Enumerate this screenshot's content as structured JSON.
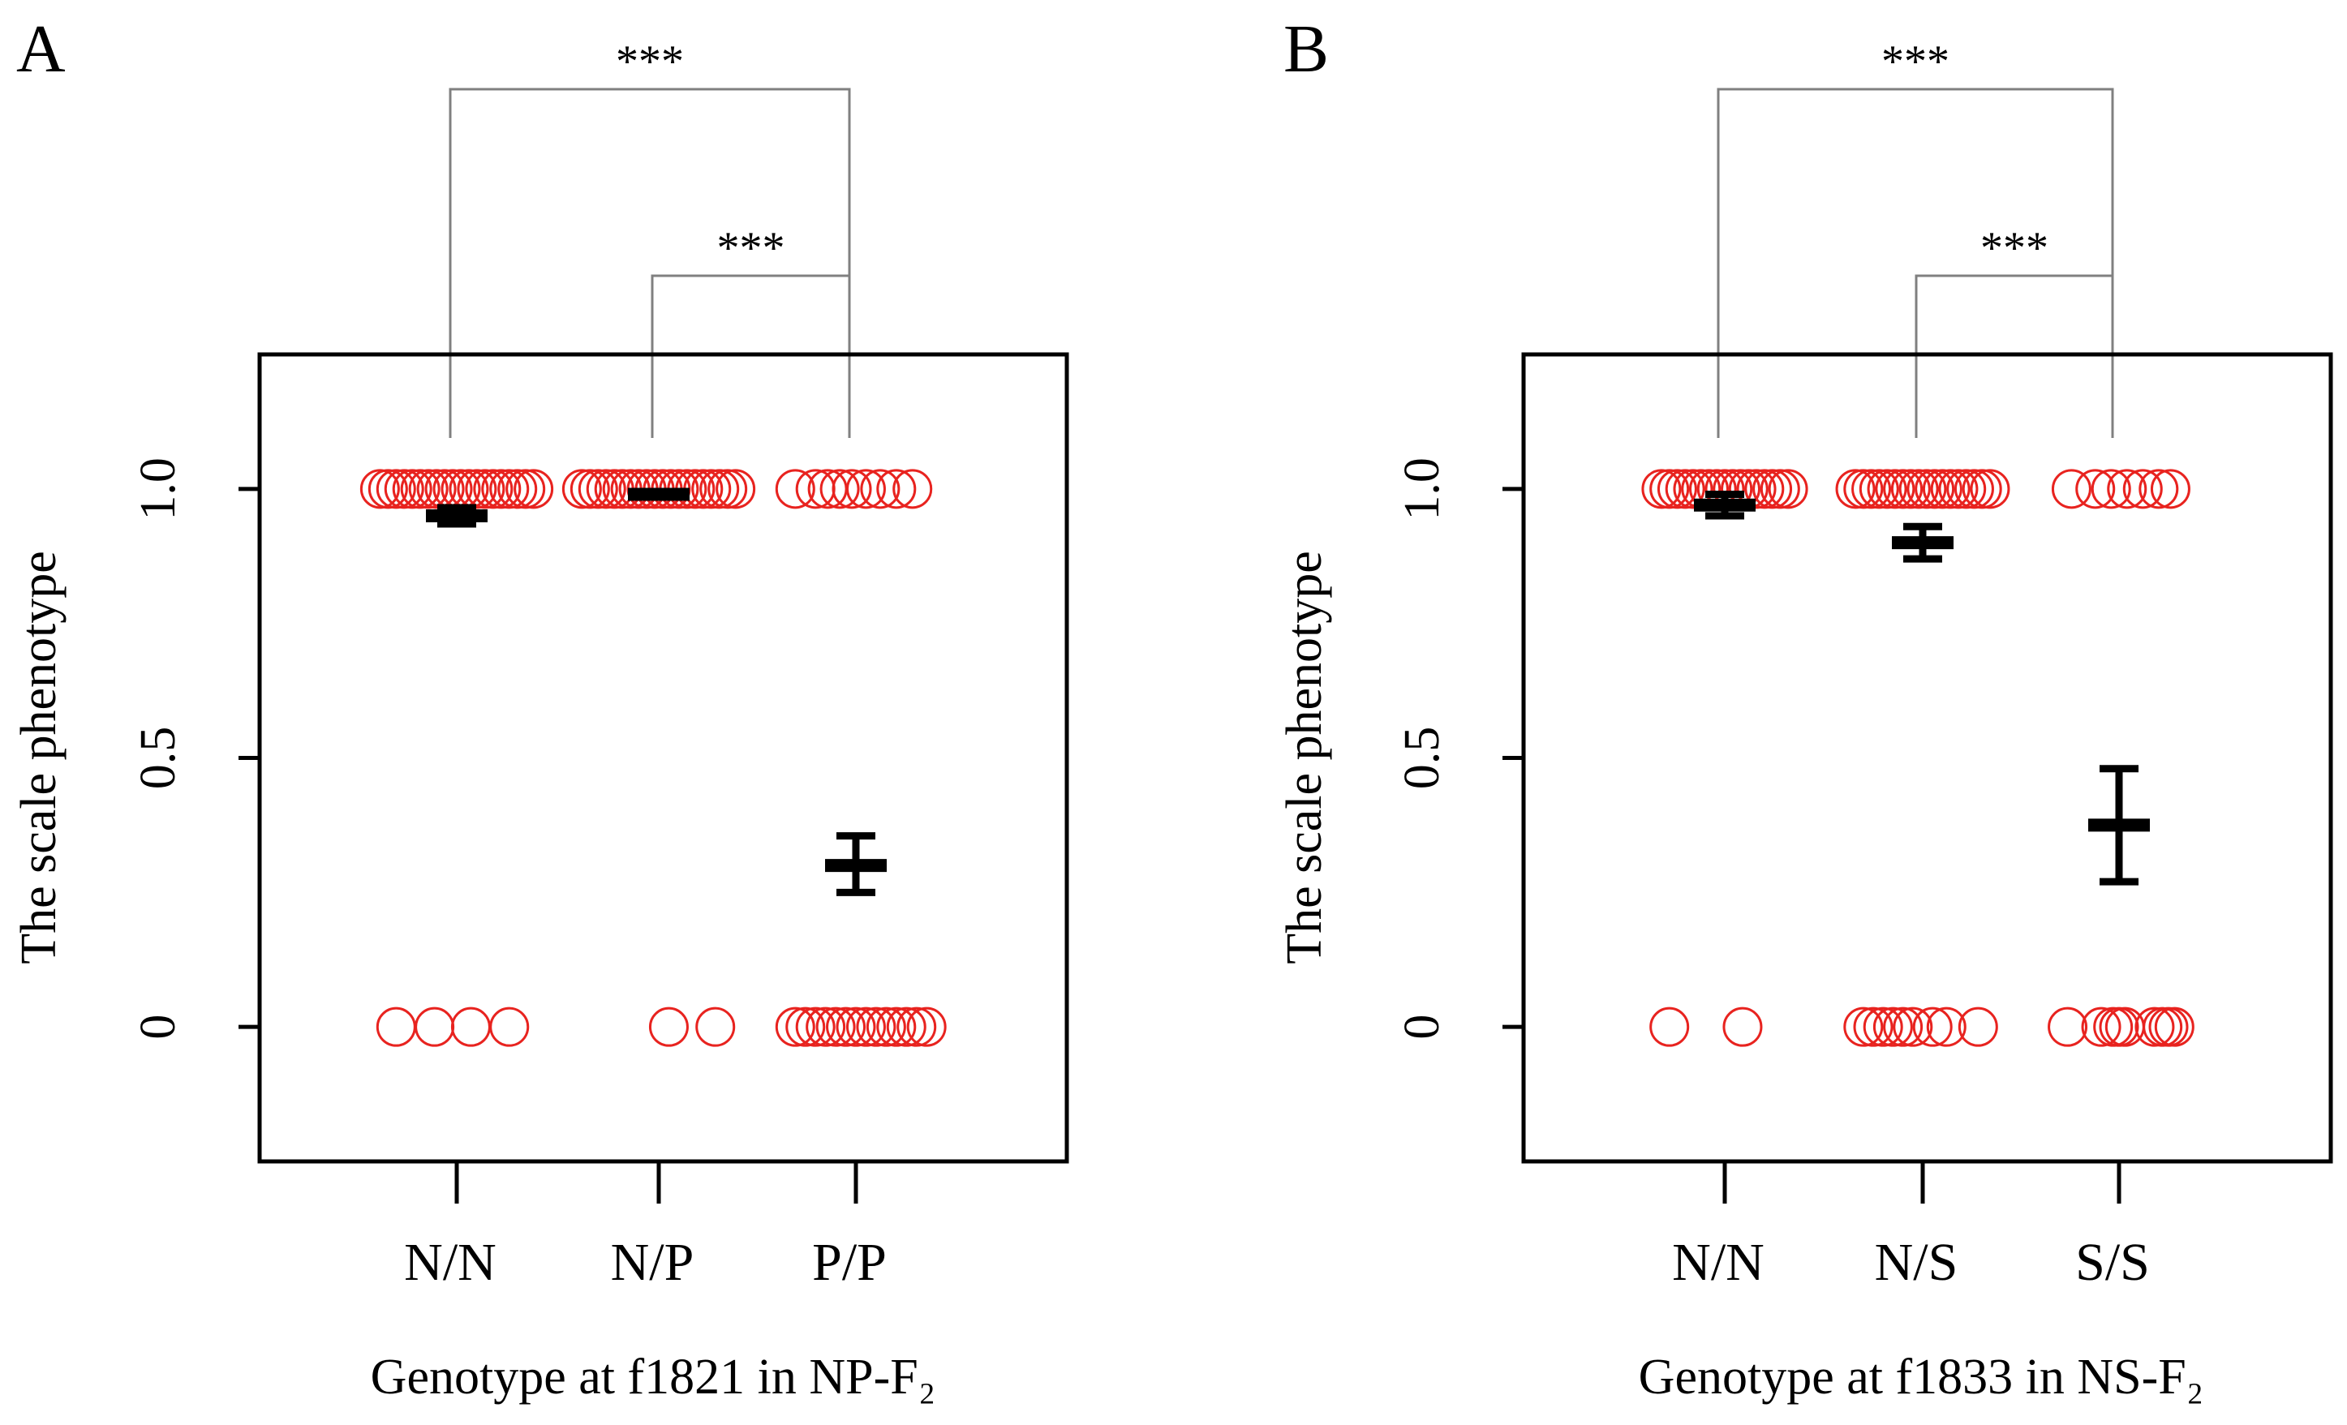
{
  "figure": {
    "colors": {
      "points": "#e8231f",
      "means": "#000000",
      "axes": "#000000",
      "brackets": "#808080"
    }
  },
  "chart_data": [
    {
      "type": "scatter",
      "panel_label": "A",
      "title": "",
      "xlabel": "Genotype at f1821 in NP-F₂",
      "ylabel": "The scale phenotype",
      "categories": [
        "N/N",
        "N/P",
        "P/P"
      ],
      "ylim": [
        -0.25,
        1.25
      ],
      "yticks": [
        0,
        0.5,
        1.0
      ],
      "ytick_labels": [
        "0",
        "0.5",
        "1.0"
      ],
      "points": [
        {
          "category": "N/N",
          "x_offsets_at_1": [
            -0.38,
            -0.34,
            -0.3,
            -0.26,
            -0.22,
            -0.18,
            -0.14,
            -0.1,
            -0.06,
            -0.02,
            0.02,
            0.06,
            0.1,
            0.14,
            0.18,
            0.22,
            0.26,
            0.3,
            0.34,
            0.38
          ],
          "x_offsets_at_0": [
            -0.3,
            -0.11,
            0.07,
            0.26
          ]
        },
        {
          "category": "N/P",
          "x_offsets_at_1": [
            -0.38,
            -0.34,
            -0.3,
            -0.26,
            -0.22,
            -0.18,
            -0.14,
            -0.1,
            -0.06,
            -0.02,
            0.02,
            0.06,
            0.1,
            0.14,
            0.18,
            0.22,
            0.26,
            0.3,
            0.34,
            0.38
          ],
          "x_offsets_at_0": [
            0.05,
            0.28
          ]
        },
        {
          "category": "P/P",
          "x_offsets_at_1": [
            -0.3,
            -0.2,
            -0.14,
            -0.08,
            -0.02,
            0.05,
            0.12,
            0.2,
            0.28
          ],
          "x_offsets_at_0": [
            -0.3,
            -0.25,
            -0.2,
            -0.15,
            -0.1,
            -0.05,
            0.0,
            0.05,
            0.1,
            0.15,
            0.2,
            0.25,
            0.3,
            0.35
          ]
        }
      ],
      "summary": [
        {
          "category": "N/N",
          "mean": 0.95,
          "lower": 0.935,
          "upper": 0.965
        },
        {
          "category": "N/P",
          "mean": 0.99,
          "lower": 0.985,
          "upper": 0.995
        },
        {
          "category": "P/P",
          "mean": 0.3,
          "lower": 0.25,
          "upper": 0.355
        }
      ],
      "significance": [
        {
          "from": "N/N",
          "to": "P/P",
          "label": "***",
          "level": 1
        },
        {
          "from": "N/P",
          "to": "P/P",
          "label": "***",
          "level": 2
        }
      ]
    },
    {
      "type": "scatter",
      "panel_label": "B",
      "title": "",
      "xlabel": "Genotype at f1833 in NS-F₂",
      "ylabel": "The scale phenotype",
      "categories": [
        "N/N",
        "N/S",
        "S/S"
      ],
      "ylim": [
        -0.25,
        1.25
      ],
      "yticks": [
        0,
        0.5,
        1.0
      ],
      "ytick_labels": [
        "0",
        "0.5",
        "1.0"
      ],
      "points": [
        {
          "category": "N/N",
          "x_offsets_at_1": [
            -0.32,
            -0.28,
            -0.24,
            -0.2,
            -0.16,
            -0.12,
            -0.08,
            -0.04,
            0.0,
            0.04,
            0.08,
            0.12,
            0.16,
            0.2,
            0.24,
            0.28,
            0.32
          ],
          "x_offsets_at_0": [
            -0.28,
            0.09
          ]
        },
        {
          "category": "N/S",
          "x_offsets_at_1": [
            -0.34,
            -0.3,
            -0.26,
            -0.22,
            -0.18,
            -0.14,
            -0.1,
            -0.06,
            -0.02,
            0.02,
            0.06,
            0.1,
            0.14,
            0.18,
            0.22,
            0.26,
            0.3,
            0.34
          ],
          "x_offsets_at_0": [
            -0.3,
            -0.25,
            -0.2,
            -0.15,
            -0.1,
            -0.05,
            0.05,
            0.12,
            0.28
          ]
        },
        {
          "category": "S/S",
          "x_offsets_at_1": [
            -0.24,
            -0.12,
            -0.04,
            0.04,
            0.12,
            0.2,
            0.26
          ],
          "x_offsets_at_0": [
            -0.26,
            -0.09,
            -0.03,
            0.0,
            0.03,
            0.18,
            0.22,
            0.25,
            0.28
          ]
        }
      ],
      "summary": [
        {
          "category": "N/N",
          "mean": 0.97,
          "lower": 0.95,
          "upper": 0.99
        },
        {
          "category": "N/S",
          "mean": 0.9,
          "lower": 0.87,
          "upper": 0.93
        },
        {
          "category": "S/S",
          "mean": 0.375,
          "lower": 0.27,
          "upper": 0.48
        }
      ],
      "significance": [
        {
          "from": "N/N",
          "to": "S/S",
          "label": "***",
          "level": 1
        },
        {
          "from": "N/S",
          "to": "S/S",
          "label": "***",
          "level": 2
        }
      ]
    }
  ]
}
